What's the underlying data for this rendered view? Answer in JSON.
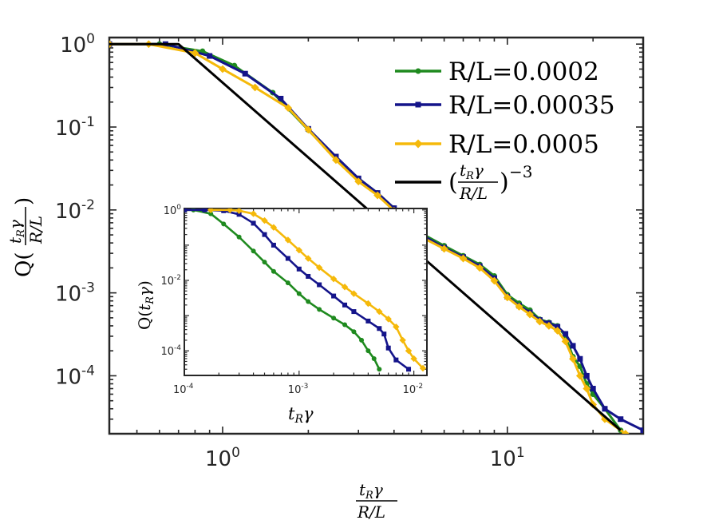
{
  "chart_data": [
    {
      "id": "main",
      "type": "line",
      "xscale": "log",
      "yscale": "log",
      "xlim": [
        0.4,
        30
      ],
      "ylim": [
        2e-05,
        1.2
      ],
      "xticks": [
        {
          "base": "10",
          "exp": "0",
          "value": 1
        },
        {
          "base": "10",
          "exp": "1",
          "value": 10
        }
      ],
      "yticks": [
        {
          "base": "10",
          "exp": "0",
          "value": 1
        },
        {
          "base": "10",
          "exp": "-1",
          "value": 0.1
        },
        {
          "base": "10",
          "exp": "-2",
          "value": 0.01
        },
        {
          "base": "10",
          "exp": "-3",
          "value": 0.001
        },
        {
          "base": "10",
          "exp": "-4",
          "value": 0.0001
        }
      ],
      "xlabel": {
        "num": "t_Rγ",
        "num_base": "t",
        "num_sub": "R",
        "num_tail": "γ",
        "den": "R/L"
      },
      "ylabel": {
        "prefix": "Q(",
        "num_base": "t",
        "num_sub": "R",
        "num_tail": "γ",
        "den": "R/L",
        "suffix": ")"
      },
      "legend_position": "top-right",
      "series": [
        {
          "name": "R/L=0.0002",
          "color": "#1f8a1f",
          "marker": "dot",
          "x": [
            0.4,
            0.6,
            0.85,
            1.1,
            1.5,
            2.0,
            2.5,
            3.0,
            3.5,
            4.0,
            5.0,
            6.0,
            7.0,
            8.0,
            9.0,
            10.0,
            11.0,
            12.0,
            13.0,
            14.0,
            15.0,
            16.0,
            17.0,
            18.0,
            19.0,
            20.0,
            22.0,
            25.0
          ],
          "y": [
            1.0,
            1.0,
            0.82,
            0.55,
            0.26,
            0.092,
            0.042,
            0.024,
            0.016,
            0.0105,
            0.0052,
            0.0037,
            0.0028,
            0.0022,
            0.0016,
            0.00095,
            0.00075,
            0.00062,
            0.00048,
            0.00044,
            0.0004,
            0.0003,
            0.00017,
            0.00013,
            8e-05,
            6e-05,
            4e-05,
            2.2e-05
          ]
        },
        {
          "name": "R/L=0.00035",
          "color": "#14148a",
          "marker": "square",
          "x": [
            0.4,
            0.63,
            0.9,
            1.2,
            1.6,
            2.0,
            2.5,
            3.0,
            3.5,
            4.0,
            5.0,
            6.0,
            7.0,
            8.0,
            9.0,
            10.0,
            11.0,
            12.0,
            13.0,
            14.0,
            15.0,
            16.0,
            17.0,
            18.0,
            19.0,
            20.0,
            22.0,
            25.0,
            30.0
          ],
          "y": [
            1.0,
            1.0,
            0.72,
            0.44,
            0.22,
            0.095,
            0.044,
            0.024,
            0.016,
            0.0105,
            0.005,
            0.0035,
            0.0027,
            0.0021,
            0.0015,
            0.0009,
            0.0007,
            0.00058,
            0.00047,
            0.00043,
            0.00039,
            0.00032,
            0.00023,
            0.00016,
            0.0001,
            7e-05,
            4e-05,
            3e-05,
            2.2e-05
          ]
        },
        {
          "name": "R/L=0.0005",
          "color": "#f5b90a",
          "marker": "diamond",
          "x": [
            0.4,
            0.55,
            0.8,
            1.0,
            1.3,
            1.7,
            2.0,
            2.5,
            3.0,
            3.5,
            4.0,
            5.0,
            6.0,
            7.0,
            8.0,
            9.0,
            10.0,
            11.0,
            12.0,
            13.0,
            14.0,
            15.0,
            16.0,
            17.0,
            18.0,
            19.0,
            20.0,
            22.0,
            26.0
          ],
          "y": [
            1.0,
            1.0,
            0.78,
            0.5,
            0.3,
            0.17,
            0.093,
            0.04,
            0.022,
            0.015,
            0.0098,
            0.0047,
            0.0034,
            0.0026,
            0.002,
            0.0014,
            0.00088,
            0.00068,
            0.00055,
            0.00045,
            0.0004,
            0.00035,
            0.00026,
            0.00016,
            0.0001,
            7e-05,
            4.5e-05,
            3e-05,
            2e-05
          ]
        },
        {
          "name": "power-law",
          "color": "#000000",
          "marker": "none",
          "label_base": "t",
          "label_sub": "R",
          "label_tail": "γ",
          "label_den": "R/L",
          "label_exp": "−3",
          "x": [
            0.4,
            0.6,
            0.7,
            25.0
          ],
          "y": [
            1.0,
            1.0,
            1.0,
            2.2e-05
          ]
        }
      ]
    },
    {
      "id": "inset",
      "type": "line",
      "xscale": "log",
      "yscale": "log",
      "xlim": [
        0.0001,
        0.013
      ],
      "ylim": [
        2e-05,
        1.1
      ],
      "xticks": [
        {
          "base": "10",
          "exp": "-4",
          "value": 0.0001
        },
        {
          "base": "10",
          "exp": "-3",
          "value": 0.001
        },
        {
          "base": "10",
          "exp": "-2",
          "value": 0.01
        }
      ],
      "yticks": [
        {
          "base": "10",
          "exp": "0",
          "value": 1
        },
        {
          "base": "10",
          "exp": "-2",
          "value": 0.01
        },
        {
          "base": "10",
          "exp": "-4",
          "value": 0.0001
        }
      ],
      "xlabel": {
        "base": "t",
        "sub": "R",
        "tail": "γ"
      },
      "ylabel": {
        "prefix": "Q(",
        "base": "t",
        "sub": "R",
        "tail": "γ",
        "suffix": ")"
      },
      "series": [
        {
          "name": "R/L=0.0002",
          "color": "#1f8a1f",
          "marker": "dot",
          "x": [
            0.0001,
            0.00012,
            0.00017,
            0.00022,
            0.0003,
            0.0004,
            0.0005,
            0.0006,
            0.0008,
            0.001,
            0.0012,
            0.0015,
            0.002,
            0.0025,
            0.003,
            0.0035,
            0.004,
            0.0045,
            0.005
          ],
          "y": [
            1.0,
            1.0,
            0.78,
            0.4,
            0.17,
            0.068,
            0.033,
            0.018,
            0.0085,
            0.0042,
            0.0025,
            0.0015,
            0.00085,
            0.00055,
            0.00035,
            0.0002,
            0.0001,
            6e-05,
            3e-05
          ]
        },
        {
          "name": "R/L=0.00035",
          "color": "#14148a",
          "marker": "square",
          "x": [
            0.0001,
            0.00015,
            0.00022,
            0.0003,
            0.0004,
            0.0005,
            0.0006,
            0.0008,
            0.001,
            0.0012,
            0.0015,
            0.002,
            0.0025,
            0.003,
            0.004,
            0.005,
            0.0055,
            0.006,
            0.007,
            0.009
          ],
          "y": [
            1.0,
            1.0,
            0.95,
            0.75,
            0.42,
            0.2,
            0.1,
            0.042,
            0.021,
            0.013,
            0.0075,
            0.0036,
            0.002,
            0.0013,
            0.0007,
            0.00043,
            0.0003,
            0.00012,
            5.5e-05,
            3e-05
          ]
        },
        {
          "name": "R/L=0.0005",
          "color": "#f5b90a",
          "marker": "diamond",
          "x": [
            0.00017,
            0.00025,
            0.0003,
            0.0004,
            0.0005,
            0.0006,
            0.0008,
            0.001,
            0.0012,
            0.0015,
            0.002,
            0.0025,
            0.003,
            0.004,
            0.005,
            0.006,
            0.007,
            0.008,
            0.009,
            0.01,
            0.012
          ],
          "y": [
            1.0,
            1.0,
            0.95,
            0.78,
            0.5,
            0.32,
            0.14,
            0.072,
            0.042,
            0.023,
            0.011,
            0.0065,
            0.0042,
            0.0022,
            0.0013,
            0.0008,
            0.00048,
            0.0002,
            0.0001,
            6e-05,
            3.2e-05
          ]
        }
      ]
    }
  ]
}
